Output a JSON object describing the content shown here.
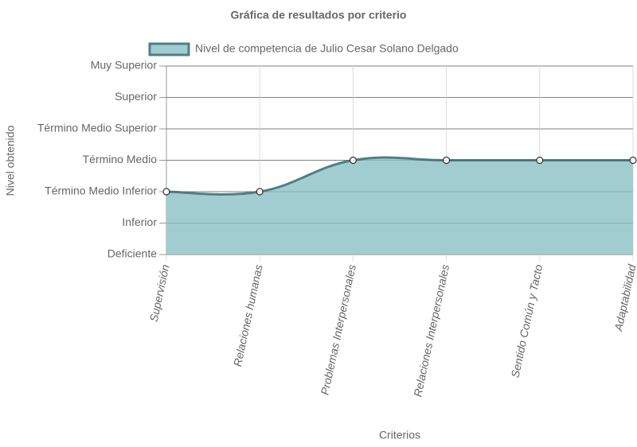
{
  "chart_data": {
    "type": "line",
    "title": "Gráfica de resultados por criterio",
    "x_label": "Criterios",
    "y_label": "Nivel obtenido",
    "categories": [
      "Supervisión",
      "Relaciones humanas",
      "Problemas Interpersonales",
      "Relaciones Interpersonales",
      "Sentido Común y Tacto",
      "Adaptabilidad"
    ],
    "series": [
      {
        "name": "Nivel de competencia de Julio Cesar Solano Delgado",
        "color": "#4f7f84",
        "fill": "#a2cdd0",
        "values": [
          2,
          2,
          3,
          3,
          3,
          3
        ]
      }
    ],
    "ylim": [
      0,
      6
    ],
    "yticks": [
      {
        "value": 0,
        "label": "Deficiente"
      },
      {
        "value": 1,
        "label": "Inferior"
      },
      {
        "value": 2,
        "label": "Término Medio Inferior"
      },
      {
        "value": 3,
        "label": "Término Medio"
      },
      {
        "value": 4,
        "label": "Término Medio Superior"
      },
      {
        "value": 5,
        "label": "Superior"
      },
      {
        "value": 6,
        "label": "Muy Superior"
      }
    ],
    "grid": true,
    "legend": "top"
  }
}
